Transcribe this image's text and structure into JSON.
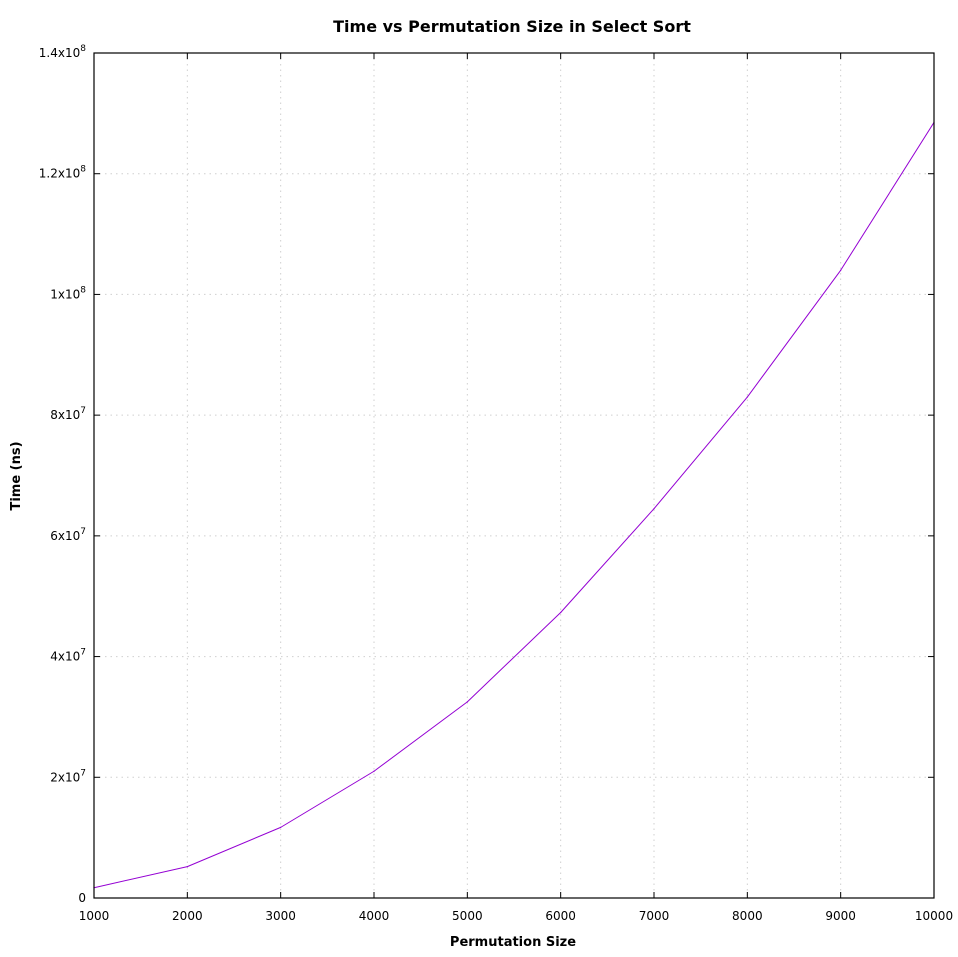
{
  "chart_data": {
    "type": "line",
    "title": "Time vs Permutation Size in Select Sort",
    "xlabel": "Permutation Size",
    "ylabel": "Time (ns)",
    "xlim": [
      1000,
      10000
    ],
    "ylim": [
      0,
      140000000
    ],
    "grid": true,
    "legend": "none",
    "x_ticks": [
      {
        "value": 1000,
        "label": "1000"
      },
      {
        "value": 2000,
        "label": "2000"
      },
      {
        "value": 3000,
        "label": "3000"
      },
      {
        "value": 4000,
        "label": "4000"
      },
      {
        "value": 5000,
        "label": "5000"
      },
      {
        "value": 6000,
        "label": "6000"
      },
      {
        "value": 7000,
        "label": "7000"
      },
      {
        "value": 8000,
        "label": "8000"
      },
      {
        "value": 9000,
        "label": "9000"
      },
      {
        "value": 10000,
        "label": "10000"
      }
    ],
    "y_ticks": [
      {
        "value": 0,
        "mantissa": "0",
        "exponent": ""
      },
      {
        "value": 20000000,
        "mantissa": "2x10",
        "exponent": "7"
      },
      {
        "value": 40000000,
        "mantissa": "4x10",
        "exponent": "7"
      },
      {
        "value": 60000000,
        "mantissa": "6x10",
        "exponent": "7"
      },
      {
        "value": 80000000,
        "mantissa": "8x10",
        "exponent": "7"
      },
      {
        "value": 100000000,
        "mantissa": "1x10",
        "exponent": "8"
      },
      {
        "value": 120000000,
        "mantissa": "1.2x10",
        "exponent": "8"
      },
      {
        "value": 140000000,
        "mantissa": "1.4x10",
        "exponent": "8"
      }
    ],
    "series": [
      {
        "color": "#9400d3",
        "x": [
          1000,
          2000,
          3000,
          4000,
          5000,
          6000,
          7000,
          8000,
          9000,
          10000
        ],
        "y": [
          1700000,
          5200000,
          11700000,
          21000000,
          32500000,
          47300000,
          64500000,
          83000000,
          104000000,
          128500000
        ]
      }
    ]
  }
}
